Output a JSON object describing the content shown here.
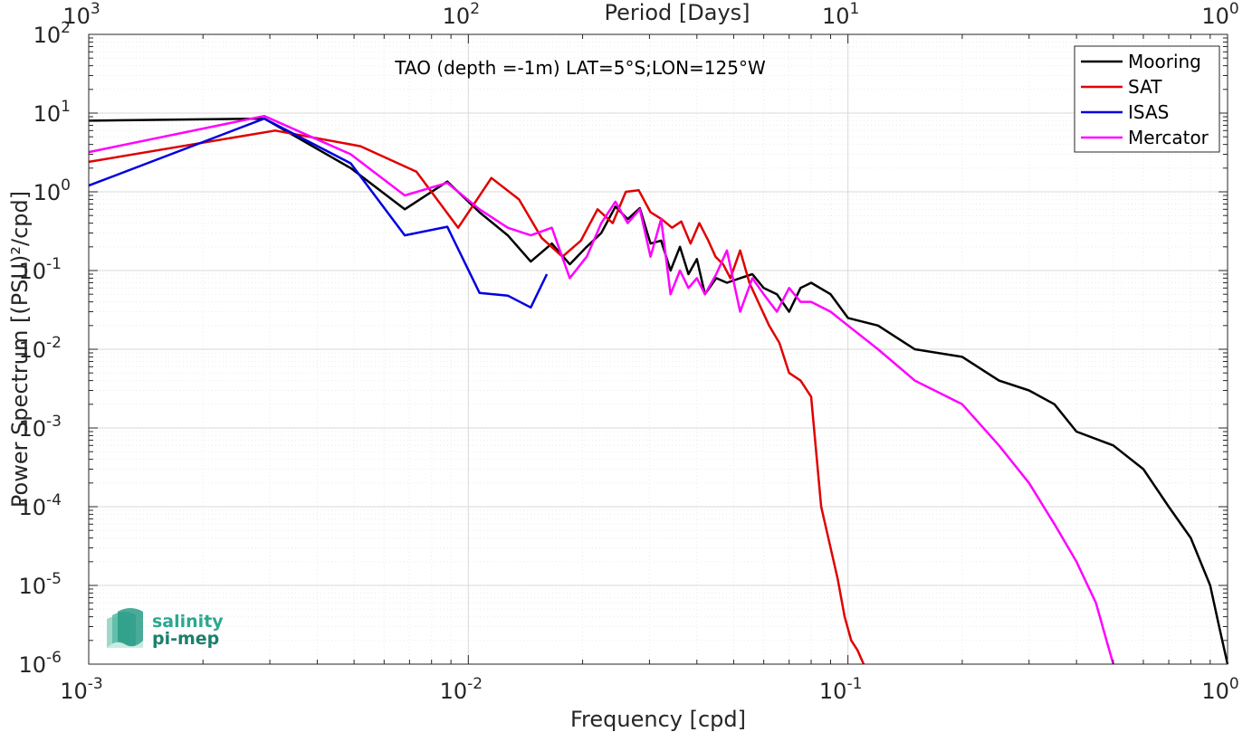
{
  "chart_data": {
    "type": "line",
    "xlabel": "Frequency [cpd]",
    "ylabel": "Power Spectrum [(PSU)²/cpd]",
    "top_xlabel": "Period [Days]",
    "annotation": "TAO (depth =-1m) LAT=5°S;LON=125°W",
    "x_scale": "log",
    "y_scale": "log",
    "xlim": [
      0.001,
      1
    ],
    "ylim": [
      1e-06,
      100
    ],
    "grid": true,
    "legend_position": "top-right",
    "x_ticks": [
      {
        "base": "10",
        "exp": "-3",
        "value": 0.001
      },
      {
        "base": "10",
        "exp": "-2",
        "value": 0.01
      },
      {
        "base": "10",
        "exp": "-1",
        "value": 0.1
      },
      {
        "base": "10",
        "exp": "0",
        "value": 1
      }
    ],
    "top_ticks": [
      {
        "base": "10",
        "exp": "3",
        "value": 0.001
      },
      {
        "base": "10",
        "exp": "2",
        "value": 0.01
      },
      {
        "base": "10",
        "exp": "1",
        "value": 0.1
      },
      {
        "base": "10",
        "exp": "0",
        "value": 1
      }
    ],
    "y_ticks": [
      {
        "base": "10",
        "exp": "-6",
        "value": 1e-06
      },
      {
        "base": "10",
        "exp": "-5",
        "value": 1e-05
      },
      {
        "base": "10",
        "exp": "-4",
        "value": 0.0001
      },
      {
        "base": "10",
        "exp": "-3",
        "value": 0.001
      },
      {
        "base": "10",
        "exp": "-2",
        "value": 0.01
      },
      {
        "base": "10",
        "exp": "-1",
        "value": 0.1
      },
      {
        "base": "10",
        "exp": "0",
        "value": 1
      },
      {
        "base": "10",
        "exp": "1",
        "value": 10
      },
      {
        "base": "10",
        "exp": "2",
        "value": 100
      }
    ],
    "series": [
      {
        "name": "Mooring",
        "color": "#000000",
        "x": [
          0.001,
          0.0029,
          0.0049,
          0.0068,
          0.0088,
          0.0107,
          0.0127,
          0.0146,
          0.0166,
          0.0185,
          0.0205,
          0.0224,
          0.0244,
          0.0263,
          0.0283,
          0.0302,
          0.0322,
          0.0341,
          0.0361,
          0.038,
          0.04,
          0.042,
          0.045,
          0.048,
          0.052,
          0.056,
          0.06,
          0.065,
          0.07,
          0.075,
          0.08,
          0.09,
          0.1,
          0.12,
          0.15,
          0.2,
          0.25,
          0.3,
          0.35,
          0.4,
          0.5,
          0.6,
          0.7,
          0.8,
          0.9,
          0.95,
          1.0
        ],
        "y": [
          8.0,
          8.5,
          2.0,
          0.6,
          1.35,
          0.55,
          0.28,
          0.13,
          0.22,
          0.12,
          0.2,
          0.3,
          0.65,
          0.45,
          0.62,
          0.22,
          0.24,
          0.1,
          0.2,
          0.09,
          0.14,
          0.05,
          0.08,
          0.07,
          0.08,
          0.09,
          0.06,
          0.05,
          0.03,
          0.06,
          0.07,
          0.05,
          0.025,
          0.02,
          0.01,
          0.008,
          0.004,
          0.003,
          0.002,
          0.0009,
          0.0006,
          0.0003,
          0.0001,
          4e-05,
          1e-05,
          3e-06,
          1e-06
        ]
      },
      {
        "name": "SAT",
        "color": "#e00000",
        "x": [
          0.001,
          0.0031,
          0.0052,
          0.0073,
          0.0094,
          0.0115,
          0.0136,
          0.0156,
          0.0177,
          0.0198,
          0.0219,
          0.024,
          0.026,
          0.0281,
          0.0302,
          0.0323,
          0.0344,
          0.0364,
          0.0385,
          0.0406,
          0.0427,
          0.0448,
          0.0469,
          0.049,
          0.052,
          0.055,
          0.058,
          0.062,
          0.066,
          0.07,
          0.075,
          0.08,
          0.085,
          0.09,
          0.094,
          0.098,
          0.102,
          0.106,
          0.11
        ],
        "y": [
          2.4,
          6.0,
          3.8,
          1.8,
          0.35,
          1.5,
          0.8,
          0.26,
          0.15,
          0.24,
          0.6,
          0.4,
          1.0,
          1.05,
          0.55,
          0.45,
          0.35,
          0.42,
          0.22,
          0.4,
          0.25,
          0.15,
          0.12,
          0.08,
          0.18,
          0.07,
          0.04,
          0.02,
          0.012,
          0.005,
          0.004,
          0.0025,
          0.0001,
          3e-05,
          1.2e-05,
          4e-06,
          2e-06,
          1.5e-06,
          1e-06
        ]
      },
      {
        "name": "ISAS",
        "color": "#0000e0",
        "x": [
          0.001,
          0.0029,
          0.0049,
          0.0068,
          0.0088,
          0.0107,
          0.0127,
          0.0146,
          0.0161
        ],
        "y": [
          1.2,
          8.5,
          2.3,
          0.28,
          0.36,
          0.052,
          0.048,
          0.034,
          0.09
        ]
      },
      {
        "name": "Mercator",
        "color": "#ff00ff",
        "x": [
          0.001,
          0.0029,
          0.0049,
          0.0068,
          0.0088,
          0.0107,
          0.0127,
          0.0146,
          0.0166,
          0.0185,
          0.0205,
          0.0224,
          0.0244,
          0.0263,
          0.0283,
          0.0302,
          0.0322,
          0.0341,
          0.0361,
          0.038,
          0.04,
          0.042,
          0.045,
          0.048,
          0.052,
          0.056,
          0.06,
          0.065,
          0.07,
          0.075,
          0.08,
          0.09,
          0.1,
          0.12,
          0.15,
          0.2,
          0.25,
          0.3,
          0.35,
          0.4,
          0.45,
          0.48,
          0.5
        ],
        "y": [
          3.2,
          9.2,
          3.0,
          0.9,
          1.3,
          0.6,
          0.35,
          0.28,
          0.35,
          0.08,
          0.15,
          0.4,
          0.75,
          0.4,
          0.6,
          0.15,
          0.45,
          0.05,
          0.1,
          0.06,
          0.08,
          0.05,
          0.09,
          0.18,
          0.03,
          0.08,
          0.05,
          0.03,
          0.06,
          0.04,
          0.04,
          0.03,
          0.02,
          0.01,
          0.004,
          0.002,
          0.0006,
          0.0002,
          6e-05,
          2e-05,
          6e-06,
          2e-06,
          1e-06
        ]
      }
    ]
  },
  "logo": {
    "line1": "salinity",
    "line2": "pi-mep"
  }
}
